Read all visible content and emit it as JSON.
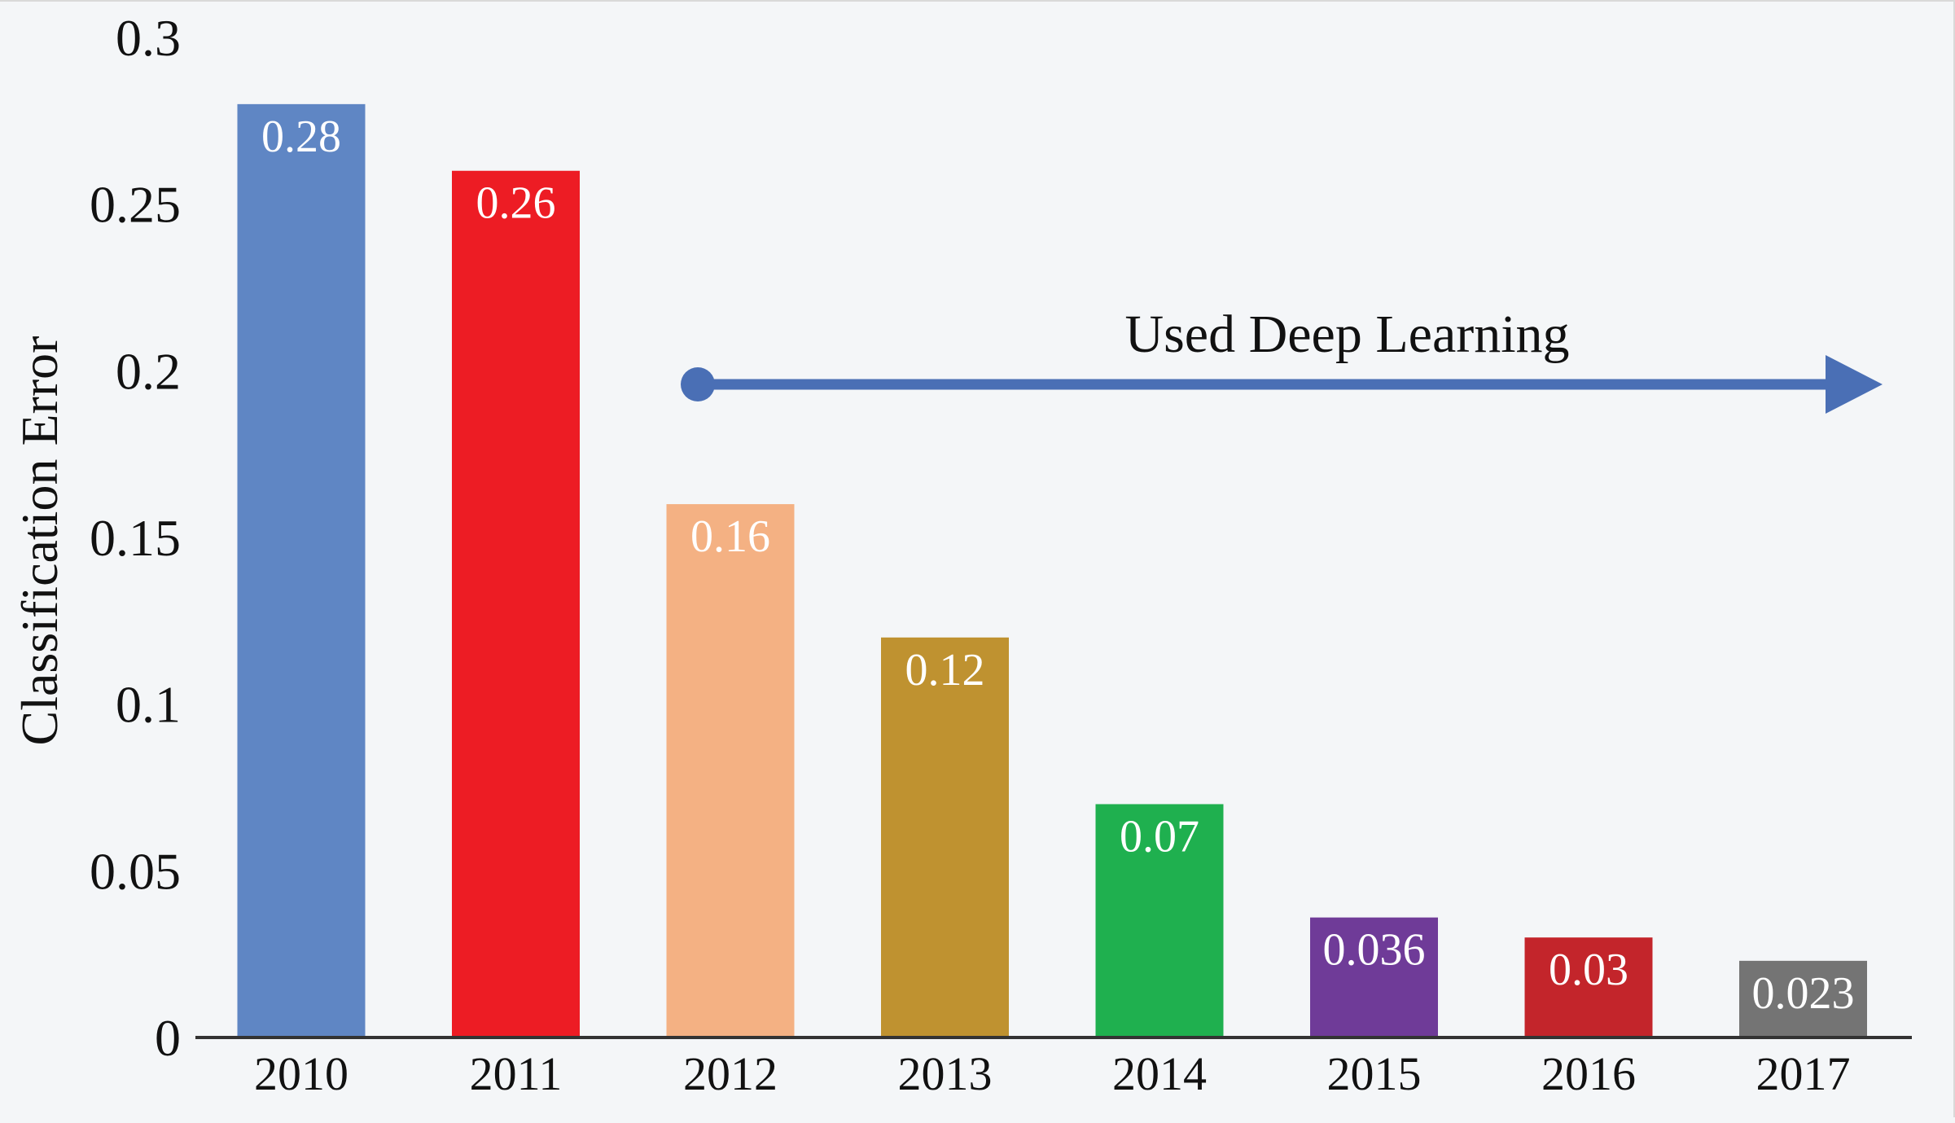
{
  "chart_data": {
    "type": "bar",
    "categories": [
      "2010",
      "2011",
      "2012",
      "2013",
      "2014",
      "2015",
      "2016",
      "2017"
    ],
    "values": [
      0.28,
      0.26,
      0.16,
      0.12,
      0.07,
      0.036,
      0.03,
      0.023
    ],
    "value_labels": [
      "0.28",
      "0.26",
      "0.16",
      "0.12",
      "0.07",
      "0.036",
      "0.03",
      "0.023"
    ],
    "bar_colors": [
      "#5f86c4",
      "#ed1c24",
      "#f4b183",
      "#bf9230",
      "#1fb04f",
      "#6f3b98",
      "#c3252b",
      "#747474"
    ],
    "title": "",
    "xlabel": "",
    "ylabel": "Classification Error",
    "ylim": [
      0,
      0.3
    ],
    "yticks": [
      "0",
      "0.05",
      "0.1",
      "0.15",
      "0.2",
      "0.25",
      "0.3"
    ],
    "grid": false,
    "annotation": {
      "text": "Used Deep Learning",
      "from_category": "2012",
      "direction": "right",
      "color": "#4a6fb5"
    }
  }
}
